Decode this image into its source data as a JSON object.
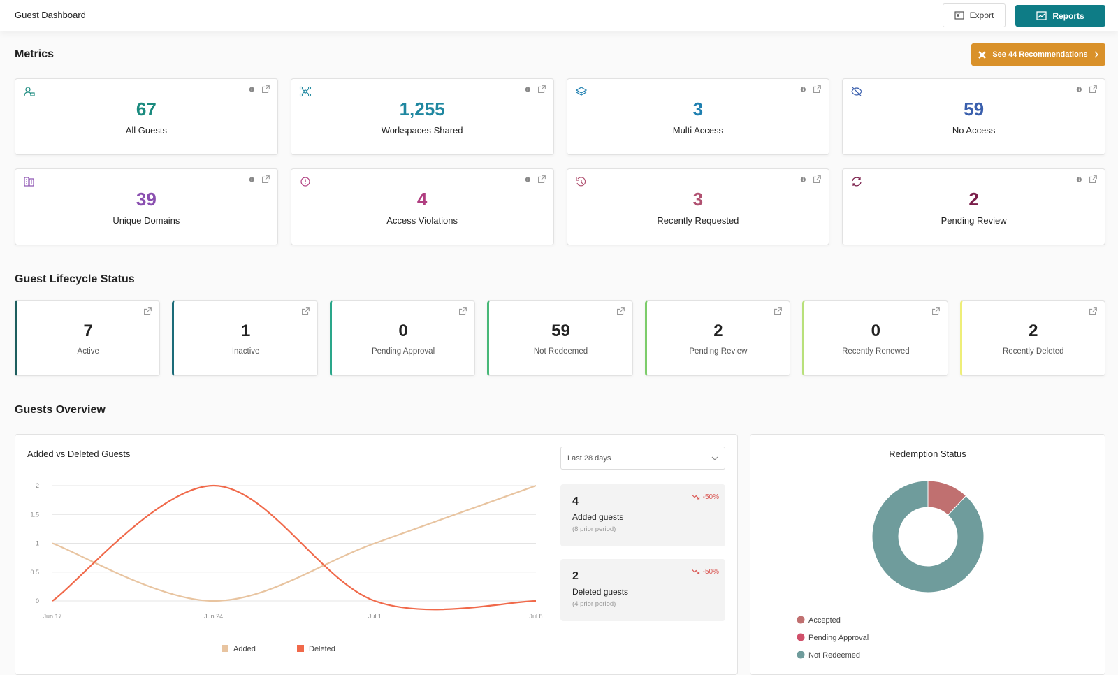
{
  "header": {
    "title": "Guest Dashboard",
    "export": "Export",
    "reports": "Reports"
  },
  "metrics": {
    "title": "Metrics",
    "recommendations": "See 44 Recommendations",
    "cards": [
      {
        "value": "67",
        "label": "All Guests",
        "color": "#1a8a7e"
      },
      {
        "value": "1,255",
        "label": "Workspaces Shared",
        "color": "#1f87a0"
      },
      {
        "value": "3",
        "label": "Multi Access",
        "color": "#1e7fb0"
      },
      {
        "value": "59",
        "label": "No Access",
        "color": "#3a5fad"
      },
      {
        "value": "39",
        "label": "Unique Domains",
        "color": "#8a4fb0"
      },
      {
        "value": "4",
        "label": "Access Violations",
        "color": "#b03e80"
      },
      {
        "value": "3",
        "label": "Recently Requested",
        "color": "#b05070"
      },
      {
        "value": "2",
        "label": "Pending Review",
        "color": "#7a1e4a"
      }
    ]
  },
  "lifecycle": {
    "title": "Guest Lifecycle Status",
    "cards": [
      {
        "value": "7",
        "label": "Active",
        "color": "#1d5e5e"
      },
      {
        "value": "1",
        "label": "Inactive",
        "color": "#1b6b78"
      },
      {
        "value": "0",
        "label": "Pending Approval",
        "color": "#2aa68a"
      },
      {
        "value": "59",
        "label": "Not Redeemed",
        "color": "#48b878"
      },
      {
        "value": "2",
        "label": "Pending Review",
        "color": "#7ccc6a"
      },
      {
        "value": "0",
        "label": "Recently Renewed",
        "color": "#b8e07a"
      },
      {
        "value": "2",
        "label": "Recently Deleted",
        "color": "#eeee78"
      }
    ]
  },
  "overview": {
    "title": "Guests Overview",
    "period": "Last 28 days",
    "stats": [
      {
        "value": "4",
        "label": "Added guests",
        "prior": "(8 prior period)",
        "change": "-50%"
      },
      {
        "value": "2",
        "label": "Deleted guests",
        "prior": "(4 prior period)",
        "change": "-50%"
      }
    ]
  },
  "chart_data": [
    {
      "type": "line",
      "title": "Added vs Deleted Guests",
      "categories": [
        "Jun 17",
        "Jun 24",
        "Jul 1",
        "Jul 8"
      ],
      "series": [
        {
          "name": "Added",
          "color": "#e8c4a0",
          "values": [
            1,
            0,
            1,
            2
          ]
        },
        {
          "name": "Deleted",
          "color": "#f0694a",
          "values": [
            0,
            2,
            0,
            0
          ]
        }
      ],
      "ylim": [
        0,
        2
      ],
      "yticks": [
        0,
        0.5,
        1,
        1.5,
        2
      ],
      "grid": true,
      "legend": "bottom"
    },
    {
      "type": "pie",
      "title": "Redemption Status",
      "categories": [
        "Accepted",
        "Pending Approval",
        "Not Redeemed"
      ],
      "values": [
        8,
        0,
        59
      ],
      "colors": [
        "#c07070",
        "#d0506a",
        "#6f9c9c"
      ],
      "donut": true,
      "legend": "bottom"
    }
  ]
}
